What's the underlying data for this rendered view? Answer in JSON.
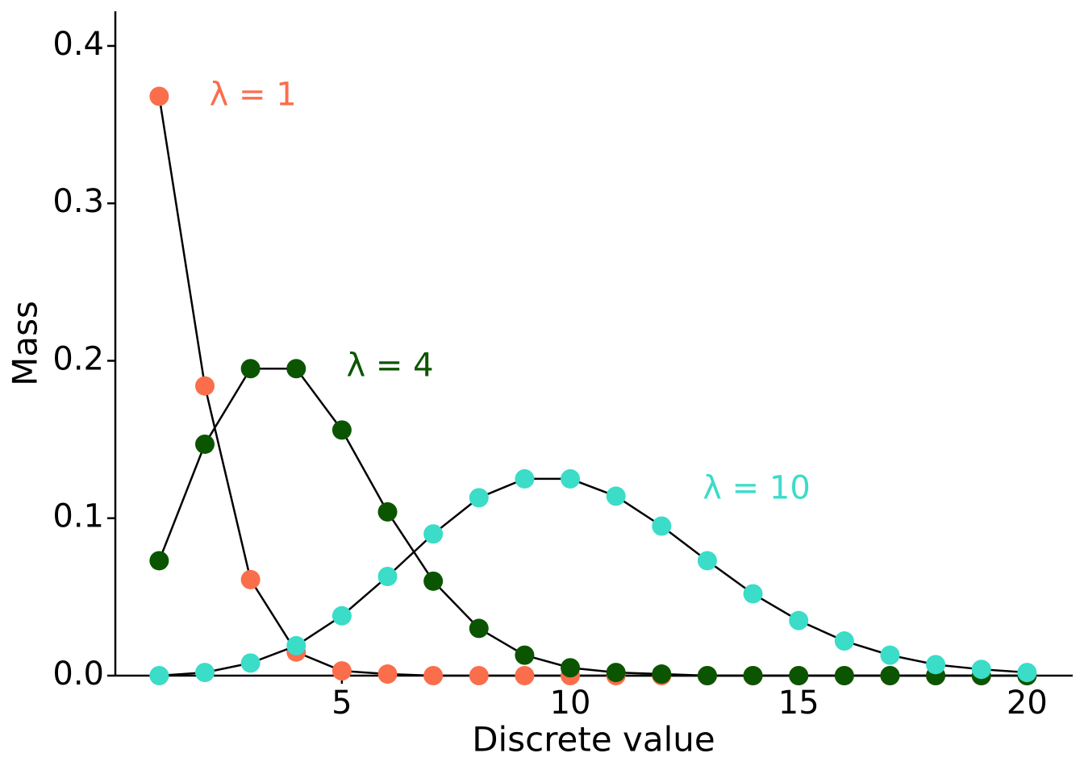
{
  "chart_data": {
    "type": "line",
    "x_label": "Discrete value",
    "y_label": "Mass",
    "x": [
      1,
      2,
      3,
      4,
      5,
      6,
      7,
      8,
      9,
      10,
      11,
      12,
      13,
      14,
      15,
      16,
      17,
      18,
      19,
      20
    ],
    "series": [
      {
        "name": "λ = 1",
        "color": "#fa6e4b",
        "values": [
          0.368,
          0.184,
          0.061,
          0.015,
          0.003,
          0.001,
          0,
          0,
          0,
          0,
          0,
          0,
          0,
          0,
          0,
          0,
          0,
          0,
          0,
          0
        ]
      },
      {
        "name": "λ = 4",
        "color": "#0b5500",
        "values": [
          0.073,
          0.147,
          0.195,
          0.195,
          0.156,
          0.104,
          0.06,
          0.03,
          0.013,
          0.005,
          0.002,
          0.001,
          0,
          0,
          0,
          0,
          0,
          0,
          0,
          0
        ]
      },
      {
        "name": "λ = 10",
        "color": "#3bdcc8",
        "values": [
          0,
          0.002,
          0.008,
          0.019,
          0.038,
          0.063,
          0.09,
          0.113,
          0.125,
          0.125,
          0.114,
          0.095,
          0.073,
          0.052,
          0.035,
          0.022,
          0.013,
          0.007,
          0.004,
          0.002
        ]
      }
    ],
    "xlim": [
      0.04,
      21
    ],
    "xticks": [
      5,
      10,
      15,
      20
    ],
    "ylim": [
      0,
      0.422
    ],
    "yticks": [
      {
        "value": 0,
        "label": "0.0"
      },
      0.1,
      0.2,
      0.3,
      0.4
    ]
  }
}
